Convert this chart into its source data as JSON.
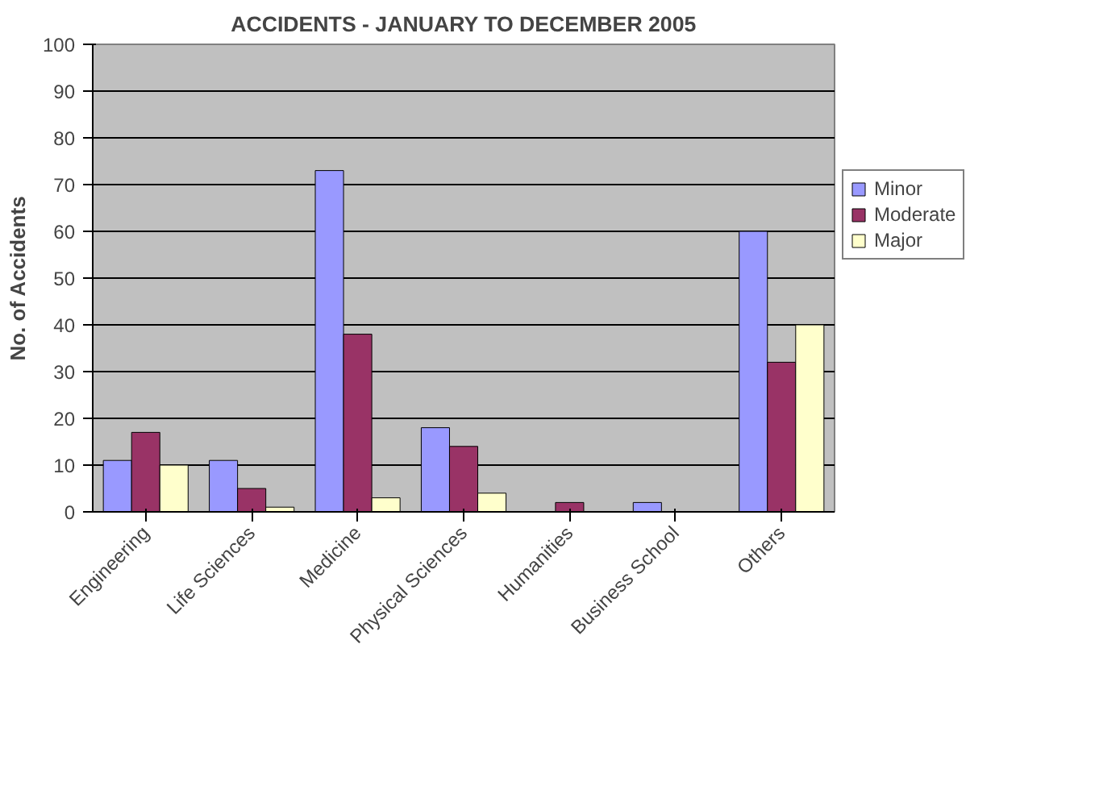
{
  "chart_data": {
    "type": "bar",
    "title": "ACCIDENTS - JANUARY TO DECEMBER 2005",
    "ylabel": "No. of Accidents",
    "categories": [
      "Engineering",
      "Life Sciences",
      "Medicine",
      "Physical Sciences",
      "Humanities",
      "Business School",
      "Others"
    ],
    "series": [
      {
        "name": "Minor",
        "color": "#9999ff",
        "values": [
          11,
          11,
          73,
          18,
          0,
          2,
          60
        ]
      },
      {
        "name": "Moderate",
        "color": "#993366",
        "values": [
          17,
          5,
          38,
          14,
          2,
          0,
          32
        ]
      },
      {
        "name": "Major",
        "color": "#ffffcc",
        "values": [
          10,
          1,
          3,
          4,
          0,
          0,
          40
        ]
      }
    ],
    "ylim": [
      0,
      100
    ],
    "yticks": [
      0,
      10,
      20,
      30,
      40,
      50,
      60,
      70,
      80,
      90,
      100
    ],
    "grid": "y",
    "legend": "right"
  }
}
